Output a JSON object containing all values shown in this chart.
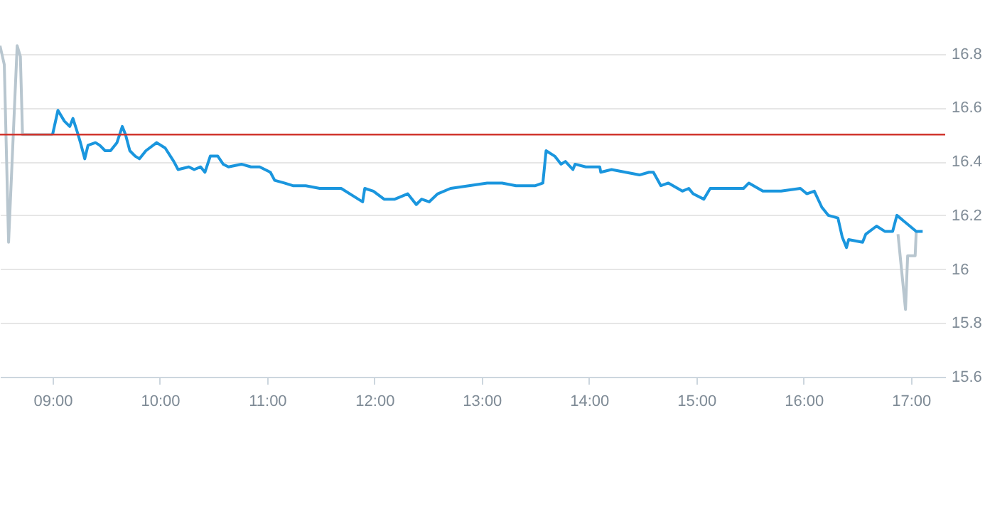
{
  "chart_data": {
    "type": "line",
    "xlim": [
      8.51,
      17.32
    ],
    "ylim": [
      15.6,
      17.0
    ],
    "xticks": [
      {
        "value": 9,
        "label": "09:00"
      },
      {
        "value": 10,
        "label": "10:00"
      },
      {
        "value": 11,
        "label": "11:00"
      },
      {
        "value": 12,
        "label": "12:00"
      },
      {
        "value": 13,
        "label": "13:00"
      },
      {
        "value": 14,
        "label": "14:00"
      },
      {
        "value": 15,
        "label": "15:00"
      },
      {
        "value": 16,
        "label": "16:00"
      },
      {
        "value": 17,
        "label": "17:00"
      }
    ],
    "yticks": [
      15.6,
      15.8,
      16,
      16.2,
      16.4,
      16.6,
      16.8
    ],
    "grid": "y",
    "marker": "none",
    "line_style": "solid",
    "ref_lines": [
      {
        "axis": "y",
        "value": 16.5,
        "color": "#d0342c"
      }
    ],
    "series": [
      {
        "color": "#b8c6cf",
        "x": [
          8.51,
          8.55,
          8.59,
          8.67,
          8.7,
          8.72,
          9.0
        ],
        "values": [
          16.83,
          16.76,
          16.1,
          16.83,
          16.79,
          16.5,
          16.5
        ]
      },
      {
        "color": "#b8c6cf",
        "x": [
          16.88,
          16.91,
          16.95,
          16.97,
          17.04,
          17.05
        ],
        "values": [
          16.13,
          16.01,
          15.85,
          16.05,
          16.05,
          16.14
        ]
      },
      {
        "color": "#1a96de",
        "x": [
          9.0,
          9.05,
          9.11,
          9.16,
          9.19,
          9.23,
          9.26,
          9.3,
          9.33,
          9.4,
          9.44,
          9.49,
          9.54,
          9.6,
          9.65,
          9.68,
          9.72,
          9.77,
          9.81,
          9.87,
          9.97,
          10.05,
          10.13,
          10.17,
          10.27,
          10.32,
          10.38,
          10.42,
          10.47,
          10.54,
          10.59,
          10.64,
          10.76,
          10.85,
          10.93,
          11.03,
          11.07,
          11.16,
          11.24,
          11.36,
          11.49,
          11.69,
          11.89,
          11.91,
          11.99,
          12.09,
          12.19,
          12.31,
          12.39,
          12.44,
          12.51,
          12.59,
          12.71,
          12.88,
          13.05,
          13.19,
          13.32,
          13.5,
          13.57,
          13.6,
          13.68,
          13.74,
          13.78,
          13.85,
          13.87,
          13.97,
          14.1,
          14.11,
          14.21,
          14.34,
          14.47,
          14.56,
          14.6,
          14.67,
          14.74,
          14.87,
          14.93,
          14.97,
          15.07,
          15.13,
          15.26,
          15.44,
          15.49,
          15.62,
          15.79,
          15.97,
          16.03,
          16.1,
          16.17,
          16.23,
          16.32,
          16.36,
          16.4,
          16.42,
          16.55,
          16.58,
          16.68,
          16.76,
          16.83,
          16.87,
          17.05,
          17.11
        ],
        "values": [
          16.5,
          16.59,
          16.55,
          16.53,
          16.56,
          16.51,
          16.47,
          16.41,
          16.46,
          16.47,
          16.46,
          16.44,
          16.44,
          16.47,
          16.53,
          16.5,
          16.44,
          16.42,
          16.41,
          16.44,
          16.47,
          16.45,
          16.4,
          16.37,
          16.38,
          16.37,
          16.38,
          16.36,
          16.42,
          16.42,
          16.39,
          16.38,
          16.39,
          16.38,
          16.38,
          16.36,
          16.33,
          16.32,
          16.31,
          16.31,
          16.3,
          16.3,
          16.25,
          16.3,
          16.29,
          16.26,
          16.26,
          16.28,
          16.24,
          16.26,
          16.25,
          16.28,
          16.3,
          16.31,
          16.32,
          16.32,
          16.31,
          16.31,
          16.32,
          16.44,
          16.42,
          16.39,
          16.4,
          16.37,
          16.39,
          16.38,
          16.38,
          16.36,
          16.37,
          16.36,
          16.35,
          16.36,
          16.36,
          16.31,
          16.32,
          16.29,
          16.3,
          16.28,
          16.26,
          16.3,
          16.3,
          16.3,
          16.32,
          16.29,
          16.29,
          16.3,
          16.28,
          16.29,
          16.23,
          16.2,
          16.19,
          16.12,
          16.08,
          16.11,
          16.1,
          16.13,
          16.16,
          16.14,
          16.14,
          16.2,
          16.14,
          16.14
        ]
      }
    ]
  }
}
